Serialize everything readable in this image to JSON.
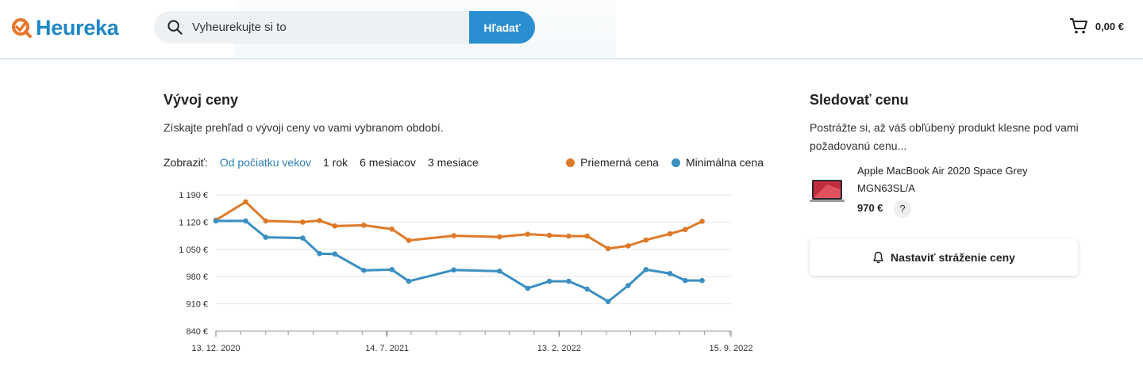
{
  "header": {
    "logo_text": "Heureka",
    "search": {
      "placeholder": "Vyheurekujte si to",
      "button_label": "Hľadať"
    },
    "cart": {
      "total": "0,00 €"
    }
  },
  "price_history": {
    "title": "Vývoj ceny",
    "description": "Získajte prehľad o vývoji ceny vo vami vybranom období.",
    "filter_label": "Zobraziť:",
    "filters": [
      "Od počiatku vekov",
      "1 rok",
      "6 mesiacov",
      "3 mesiace"
    ],
    "active_filter": "Od počiatku vekov",
    "legend": [
      {
        "label": "Priemerná cena",
        "color": "#dd7a2a"
      },
      {
        "label": "Minimálna cena",
        "color": "#3b8fc1"
      }
    ]
  },
  "chart_data": {
    "type": "line",
    "x_tick_labels": [
      "13. 12. 2020",
      "14. 7. 2021",
      "13. 2. 2022",
      "15. 9. 2022"
    ],
    "y_tick_labels": [
      "1 190 €",
      "1 120 €",
      "1 050 €",
      "980 €",
      "910 €",
      "840 €"
    ],
    "y_ticks": [
      1190,
      1120,
      1050,
      980,
      910,
      840
    ],
    "ylim": [
      840,
      1190
    ],
    "x": [
      "2020-12-13",
      "2021-01-19",
      "2021-02-13",
      "2021-03-31",
      "2021-04-21",
      "2021-05-10",
      "2021-06-15",
      "2021-07-20",
      "2021-08-10",
      "2021-10-05",
      "2021-12-01",
      "2022-01-05",
      "2022-02-01",
      "2022-02-25",
      "2022-03-20",
      "2022-04-15",
      "2022-05-10",
      "2022-06-01",
      "2022-07-01",
      "2022-07-20",
      "2022-08-10",
      "2022-09-01",
      "2022-09-15"
    ],
    "series": [
      {
        "name": "Priemerná cena",
        "color": "#dd7a2a",
        "values": [
          1125,
          1172,
          1123,
          1120,
          1124,
          1110,
          1112,
          1102,
          1073,
          1085,
          1082,
          1089,
          1086,
          1084,
          1084,
          1052,
          1059,
          1074,
          1090,
          1101,
          1122,
          null,
          null
        ]
      },
      {
        "name": "Minimálna cena",
        "color": "#3b8fc1",
        "values": [
          1123,
          1123,
          1081,
          1079,
          1039,
          1038,
          996,
          998,
          968,
          997,
          994,
          950,
          968,
          968,
          948,
          916,
          957,
          998,
          988,
          970,
          970,
          null,
          null
        ]
      }
    ],
    "grid": true,
    "legend_position": "top-right"
  },
  "watch_price": {
    "title": "Sledovať cenu",
    "description": "Postrážte si, až váš obľúbený produkt klesne pod vami požadovanú cenu...",
    "product": {
      "name": "Apple MacBook Air 2020 Space Grey MGN63SL/A",
      "price": "970 €",
      "help": "?"
    },
    "button_label": "Nastaviť stráženie ceny"
  }
}
